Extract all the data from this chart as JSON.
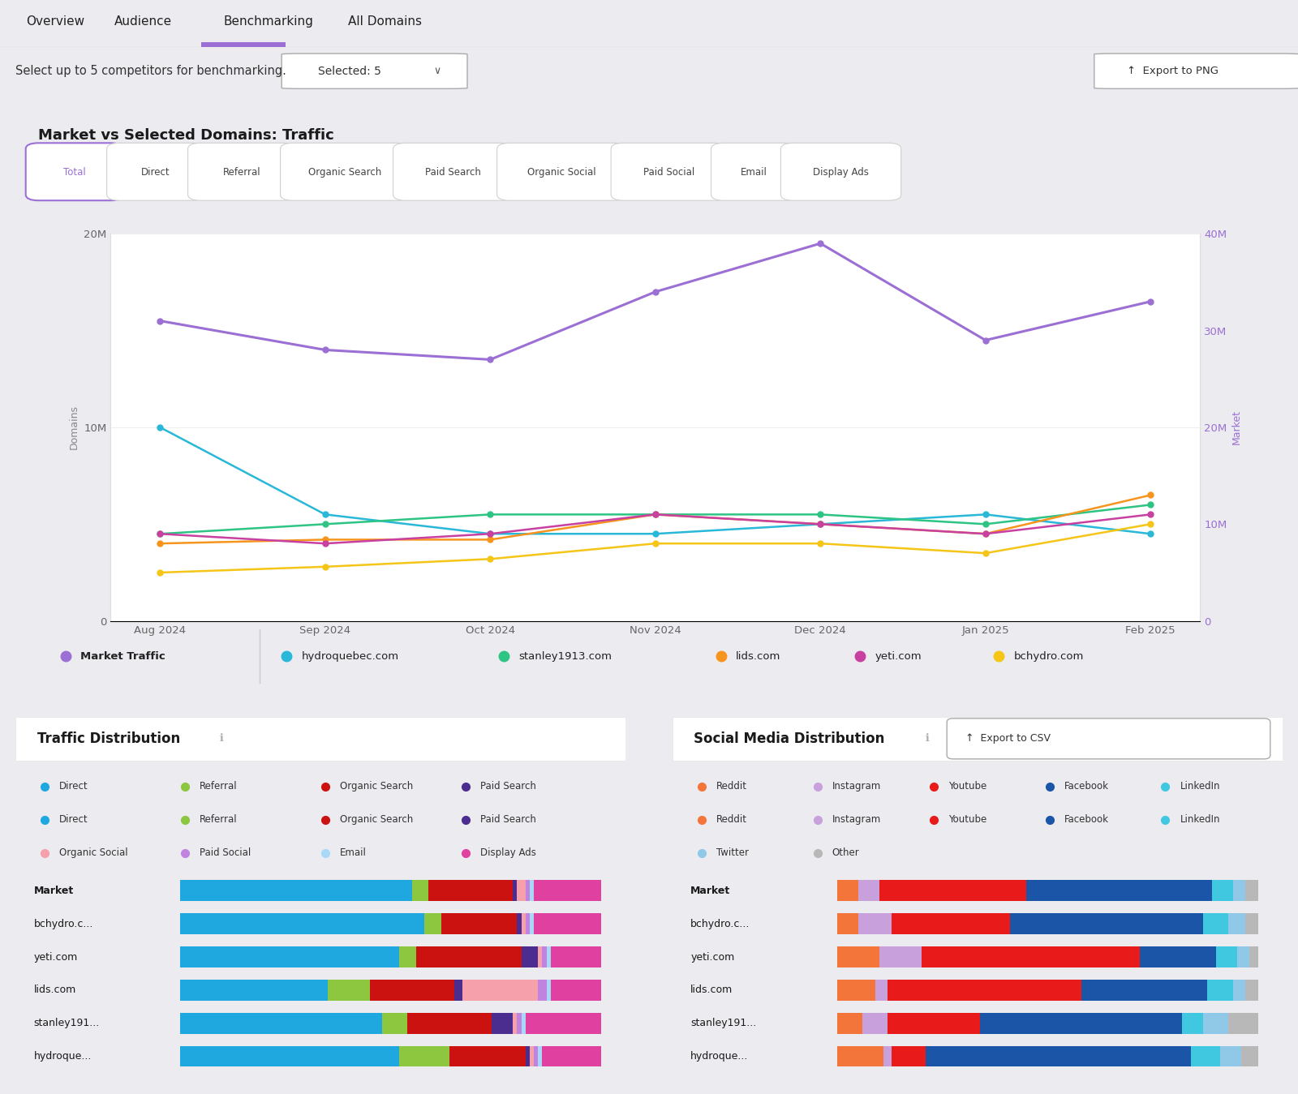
{
  "bg_color": "#ebebf0",
  "panel_color": "#ffffff",
  "title_tab": "Benchmarking",
  "tabs": [
    "Overview",
    "Audience",
    "Benchmarking",
    "All Domains"
  ],
  "active_tab_color": "#9b6fd4",
  "selector_text": "Selected: 5",
  "export_png_text": "Export to PNG",
  "export_csv_text": "Export to CSV",
  "chart_title": "Market vs Selected Domains: Traffic",
  "traffic_buttons": [
    "Total",
    "Direct",
    "Referral",
    "Organic Search",
    "Paid Search",
    "Organic Social",
    "Paid Social",
    "Email",
    "Display Ads"
  ],
  "active_button": "Total",
  "x_labels": [
    "Aug 2024",
    "Sep 2024",
    "Oct 2024",
    "Nov 2024",
    "Dec 2024",
    "Jan 2025",
    "Feb 2025"
  ],
  "left_ylabel": "Domains",
  "right_ylabel": "Market",
  "right_ylabel_color": "#9b6fd4",
  "lines": {
    "market_traffic": {
      "label": "Market Traffic",
      "color": "#9b6fd4",
      "bold": true,
      "data": [
        31000000,
        28000000,
        27000000,
        34000000,
        39000000,
        29000000,
        33000000
      ],
      "axis": "right"
    },
    "hydroquebec": {
      "label": "hydroquebec.com",
      "color": "#29b8d8",
      "data": [
        10000000,
        5500000,
        4500000,
        4500000,
        5000000,
        5500000,
        4500000
      ],
      "axis": "left"
    },
    "stanley1913": {
      "label": "stanley1913.com",
      "color": "#2ec484",
      "data": [
        4500000,
        5000000,
        5500000,
        5500000,
        5500000,
        5000000,
        6000000
      ],
      "axis": "left"
    },
    "lids": {
      "label": "lids.com",
      "color": "#f7941d",
      "data": [
        4000000,
        4200000,
        4200000,
        5500000,
        5000000,
        4500000,
        6500000
      ],
      "axis": "left"
    },
    "yeti": {
      "label": "yeti.com",
      "color": "#c840a0",
      "data": [
        4500000,
        4000000,
        4500000,
        5500000,
        5000000,
        4500000,
        5500000
      ],
      "axis": "left"
    },
    "bchydro": {
      "label": "bchydro.com",
      "color": "#f5c518",
      "data": [
        2500000,
        2800000,
        3200000,
        4000000,
        4000000,
        3500000,
        5000000
      ],
      "axis": "left"
    }
  },
  "traffic_dist_title": "Traffic Distribution",
  "social_dist_title": "Social Media Distribution",
  "traffic_legend_row1": [
    {
      "label": "Direct",
      "color": "#1fa8e0"
    },
    {
      "label": "Referral",
      "color": "#8dc63f"
    },
    {
      "label": "Organic Search",
      "color": "#cc1111"
    },
    {
      "label": "Paid Search",
      "color": "#4b2d8f"
    }
  ],
  "traffic_legend_row2": [
    {
      "label": "Direct",
      "color": "#1fa8e0"
    },
    {
      "label": "Referral",
      "color": "#8dc63f"
    },
    {
      "label": "Organic Search",
      "color": "#cc1111"
    },
    {
      "label": "Paid Search",
      "color": "#4b2d8f"
    }
  ],
  "traffic_legend_row3": [
    {
      "label": "Organic Social",
      "color": "#f5a0aa"
    },
    {
      "label": "Paid Social",
      "color": "#c084e0"
    },
    {
      "label": "Email",
      "color": "#a8d8f8"
    },
    {
      "label": "Display Ads",
      "color": "#e040a0"
    }
  ],
  "traffic_domains": [
    "Market",
    "bchydro.c...",
    "yeti.com",
    "lids.com",
    "stanley191...",
    "hydroque..."
  ],
  "traffic_bars": {
    "Market": [
      0.55,
      0.04,
      0.2,
      0.01,
      0.02,
      0.01,
      0.01,
      0.16
    ],
    "bchydro.c...": [
      0.58,
      0.04,
      0.18,
      0.01,
      0.01,
      0.01,
      0.01,
      0.16
    ],
    "yeti.com": [
      0.52,
      0.04,
      0.25,
      0.04,
      0.01,
      0.01,
      0.01,
      0.12
    ],
    "lids.com": [
      0.35,
      0.1,
      0.2,
      0.02,
      0.18,
      0.02,
      0.01,
      0.12
    ],
    "stanley191...": [
      0.48,
      0.06,
      0.2,
      0.05,
      0.01,
      0.01,
      0.01,
      0.18
    ],
    "hydroque...": [
      0.52,
      0.12,
      0.18,
      0.01,
      0.01,
      0.01,
      0.01,
      0.14
    ]
  },
  "traffic_bar_colors": [
    "#1fa8e0",
    "#8dc63f",
    "#cc1111",
    "#4b2d8f",
    "#f5a0aa",
    "#c084e0",
    "#a8d8f8",
    "#e040a0"
  ],
  "social_domains": [
    "Market",
    "bchydro.c...",
    "yeti.com",
    "lids.com",
    "stanley191...",
    "hydroque..."
  ],
  "social_bars": {
    "Market": [
      0.05,
      0.05,
      0.35,
      0.44,
      0.05,
      0.03,
      0.03
    ],
    "bchydro.c...": [
      0.05,
      0.08,
      0.28,
      0.46,
      0.06,
      0.04,
      0.03
    ],
    "yeti.com": [
      0.1,
      0.1,
      0.52,
      0.18,
      0.05,
      0.03,
      0.02
    ],
    "lids.com": [
      0.09,
      0.03,
      0.46,
      0.3,
      0.06,
      0.03,
      0.03
    ],
    "stanley191...": [
      0.06,
      0.06,
      0.22,
      0.48,
      0.05,
      0.06,
      0.07
    ],
    "hydroque...": [
      0.11,
      0.02,
      0.08,
      0.63,
      0.07,
      0.05,
      0.04
    ]
  },
  "social_bar_colors": [
    "#f4753a",
    "#c8a0dc",
    "#e81a1a",
    "#1a55a8",
    "#40c8e0",
    "#90c8e8",
    "#b8b8b8"
  ],
  "social_legend_row1": [
    {
      "label": "Reddit",
      "color": "#f4753a"
    },
    {
      "label": "Instagram",
      "color": "#c8a0dc"
    },
    {
      "label": "Youtube",
      "color": "#e81a1a"
    },
    {
      "label": "Facebook",
      "color": "#1a55a8"
    },
    {
      "label": "LinkedIn",
      "color": "#40c8e0"
    }
  ],
  "social_legend_row2": [
    {
      "label": "Reddit",
      "color": "#f4753a"
    },
    {
      "label": "Instagram",
      "color": "#c8a0dc"
    },
    {
      "label": "Youtube",
      "color": "#e81a1a"
    },
    {
      "label": "Facebook",
      "color": "#1a55a8"
    },
    {
      "label": "LinkedIn",
      "color": "#40c8e0"
    }
  ],
  "social_legend_row3": [
    {
      "label": "Twitter",
      "color": "#90c8e8"
    },
    {
      "label": "Other",
      "color": "#b8b8b8"
    }
  ]
}
